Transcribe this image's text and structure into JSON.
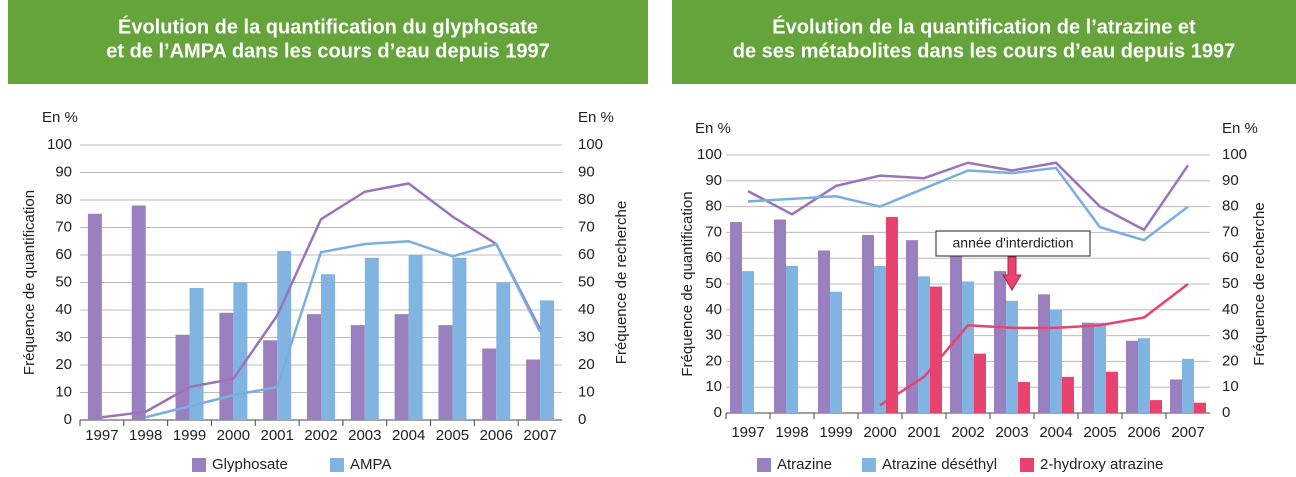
{
  "chart_data": [
    {
      "type": "bar",
      "title": [
        "Évolution de la quantification du glyphosate",
        "et de l’AMPA dans les cours d’eau depuis 1997"
      ],
      "y_unit": "En %",
      "y2_unit": "En %",
      "ylabel": "Fréquence de quantification",
      "y2label": "Fréquence de recherche",
      "categories": [
        "1997",
        "1998",
        "1999",
        "2000",
        "2001",
        "2002",
        "2003",
        "2004",
        "2005",
        "2006",
        "2007"
      ],
      "ylim": [
        0,
        100
      ],
      "yticks": [
        0,
        10,
        20,
        30,
        40,
        50,
        60,
        70,
        80,
        90,
        100
      ],
      "y2lim": [
        0,
        100
      ],
      "y2ticks": [
        0,
        10,
        20,
        30,
        40,
        50,
        60,
        70,
        80,
        90,
        100
      ],
      "grid": true,
      "series": [
        {
          "name": "Glyphosate",
          "color": "#9b80bf",
          "line_color": "#9a74bb",
          "values": [
            75,
            78,
            31,
            39,
            29,
            38.5,
            34.5,
            38.5,
            34.5,
            26,
            22
          ],
          "y2_values": [
            1,
            3,
            12,
            15,
            38,
            73,
            83,
            86,
            74,
            64,
            33
          ]
        },
        {
          "name": "AMPA",
          "color": "#82b4e2",
          "line_color": "#7aaee0",
          "values": [
            null,
            null,
            48,
            50,
            61.5,
            53,
            59,
            60,
            59,
            50,
            43.5
          ],
          "y2_values": [
            null,
            1,
            5,
            9,
            12,
            61,
            64,
            65,
            59.5,
            64,
            32
          ]
        }
      ]
    },
    {
      "type": "bar",
      "title": [
        "Évolution de la quantification de l’atrazine et",
        "de ses métabolites dans les cours d’eau depuis 1997"
      ],
      "y_unit": "En %",
      "y2_unit": "En %",
      "ylabel": "Fréquence de quantification",
      "y2label": "Fréquence de recherche",
      "categories": [
        "1997",
        "1998",
        "1999",
        "2000",
        "2001",
        "2002",
        "2003",
        "2004",
        "2005",
        "2006",
        "2007"
      ],
      "ylim": [
        0,
        100
      ],
      "yticks": [
        0,
        10,
        20,
        30,
        40,
        50,
        60,
        70,
        80,
        90,
        100
      ],
      "y2lim": [
        0,
        100
      ],
      "y2ticks": [
        0,
        10,
        20,
        30,
        40,
        50,
        60,
        70,
        80,
        90,
        100
      ],
      "grid": true,
      "annotation": "année d'interdiction",
      "series": [
        {
          "name": "Atrazine",
          "color": "#9b80bf",
          "line_color": "#9a74bb",
          "values": [
            74,
            75,
            63,
            69,
            67,
            61,
            55,
            46,
            35,
            28,
            13
          ],
          "y2_values": [
            86,
            77,
            88,
            92,
            91,
            97,
            94,
            97,
            80,
            71,
            96
          ]
        },
        {
          "name": "Atrazine déséthyl",
          "color": "#82b4e2",
          "line_color": "#7aaee0",
          "values": [
            55,
            57,
            47,
            57,
            53,
            51,
            43.5,
            40,
            35,
            29,
            21
          ],
          "y2_values": [
            82,
            83,
            84,
            80,
            87,
            94,
            93,
            95,
            72,
            67,
            80
          ]
        },
        {
          "name": "2-hydroxy atrazine",
          "color": "#e8436f",
          "line_color": "#e8436f",
          "values": [
            null,
            null,
            null,
            76,
            49,
            23,
            12,
            14,
            16,
            5,
            4
          ],
          "y2_values": [
            null,
            null,
            null,
            3,
            14,
            34,
            33,
            33,
            34,
            37,
            50
          ]
        }
      ]
    }
  ]
}
